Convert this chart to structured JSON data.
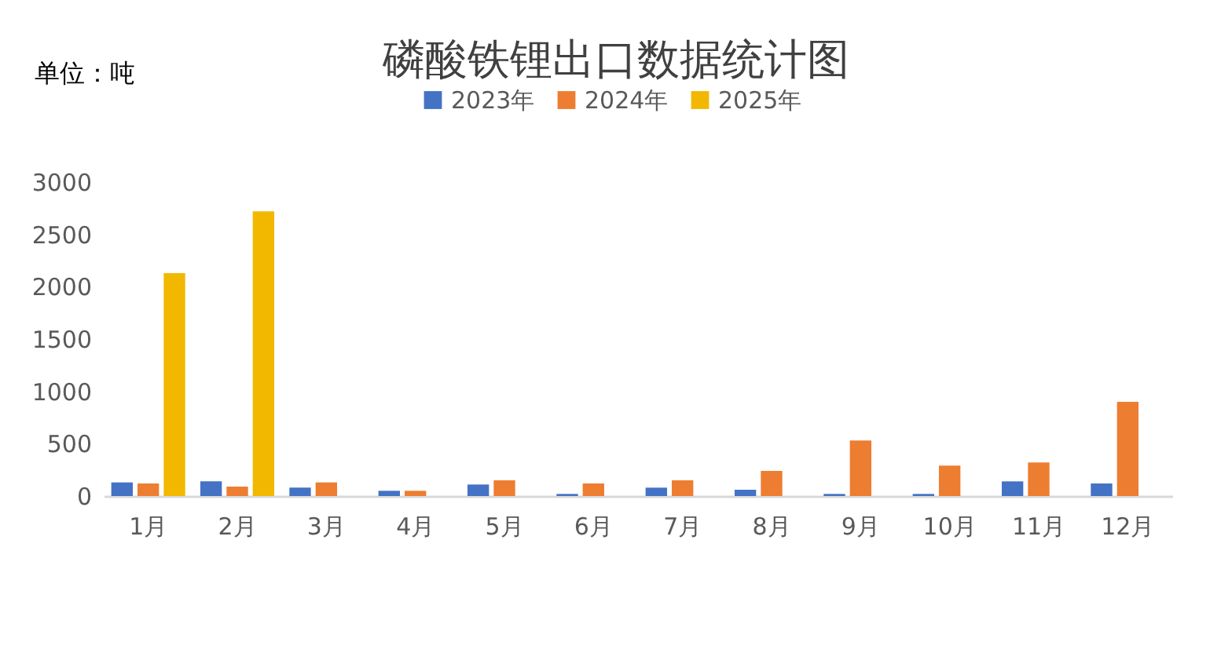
{
  "chart_data": {
    "type": "bar",
    "title": "磷酸铁锂出口数据统计图",
    "annotations": [
      "单位：吨"
    ],
    "categories": [
      "1月",
      "2月",
      "3月",
      "4月",
      "5月",
      "6月",
      "7月",
      "8月",
      "9月",
      "10月",
      "11月",
      "12月"
    ],
    "series": [
      {
        "name": "2023年",
        "color": "#4472c4",
        "values": [
          130,
          140,
          80,
          50,
          110,
          20,
          80,
          60,
          20,
          20,
          140,
          120
        ]
      },
      {
        "name": "2024年",
        "color": "#ed7d31",
        "values": [
          120,
          90,
          130,
          50,
          150,
          120,
          150,
          240,
          530,
          290,
          320,
          900
        ]
      },
      {
        "name": "2025年",
        "color": "#f2b800",
        "values": [
          2130,
          2720,
          null,
          null,
          null,
          null,
          null,
          null,
          null,
          null,
          null,
          null
        ]
      }
    ],
    "ylim": [
      0,
      3000
    ],
    "yticks": [
      0,
      500,
      1000,
      1500,
      2000,
      2500,
      3000
    ],
    "grid": false,
    "legend": "top"
  }
}
